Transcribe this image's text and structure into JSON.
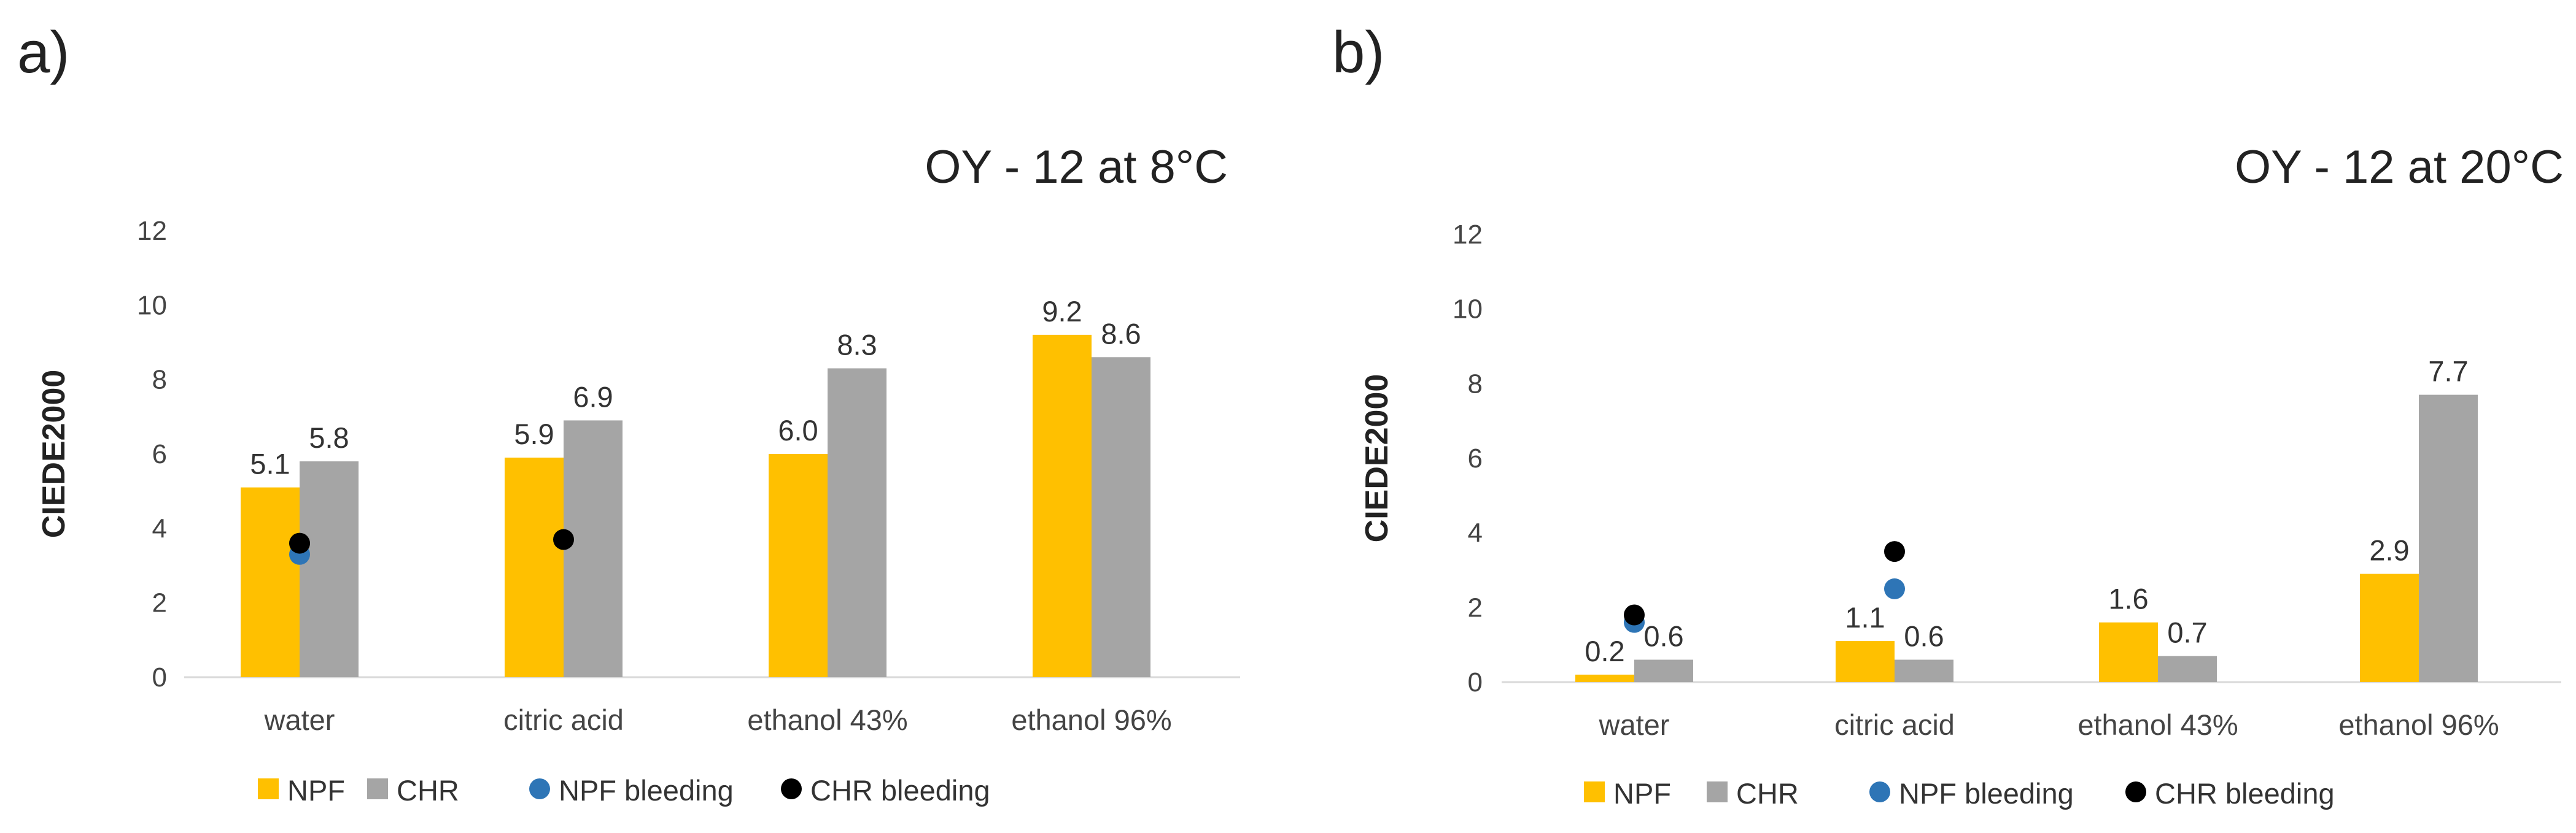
{
  "chart_data": [
    {
      "type": "bar",
      "panel": "a)",
      "title": "OY - 12 at 8°C",
      "ylabel": "CIEDE2000",
      "ylim": [
        0,
        12
      ],
      "yticks": [
        0,
        2,
        4,
        6,
        8,
        10,
        12
      ],
      "categories": [
        "water",
        "citric acid",
        "ethanol 43%",
        "ethanol 96%"
      ],
      "series": [
        {
          "name": "NPF",
          "kind": "bar",
          "color": "#FFC000",
          "values": [
            5.1,
            5.9,
            6.0,
            9.2
          ],
          "labels": [
            "5.1",
            "5.9",
            "6.0",
            "9.2"
          ]
        },
        {
          "name": "CHR",
          "kind": "bar",
          "color": "#A5A5A5",
          "values": [
            5.8,
            6.9,
            8.3,
            8.6
          ],
          "labels": [
            "5.8",
            "6.9",
            "8.3",
            "8.6"
          ]
        },
        {
          "name": "NPF bleeding",
          "kind": "marker",
          "color": "#2E75B6",
          "values": [
            3.3,
            null,
            null,
            null
          ]
        },
        {
          "name": "CHR bleeding",
          "kind": "marker",
          "color": "#000000",
          "values": [
            3.6,
            3.7,
            null,
            null
          ]
        }
      ],
      "grid": false,
      "legend_position": "bottom"
    },
    {
      "type": "bar",
      "panel": "b)",
      "title": "OY - 12 at 20°C",
      "ylabel": "CIEDE2000",
      "ylim": [
        0,
        12
      ],
      "yticks": [
        0,
        2,
        4,
        6,
        8,
        10,
        12
      ],
      "categories": [
        "water",
        "citric acid",
        "ethanol 43%",
        "ethanol 96%"
      ],
      "series": [
        {
          "name": "NPF",
          "kind": "bar",
          "color": "#FFC000",
          "values": [
            0.2,
            1.1,
            1.6,
            2.9
          ],
          "labels": [
            "0.2",
            "1.1",
            "1.6",
            "2.9"
          ]
        },
        {
          "name": "CHR",
          "kind": "bar",
          "color": "#A5A5A5",
          "values": [
            0.6,
            0.6,
            0.7,
            7.7
          ],
          "labels": [
            "0.6",
            "0.6",
            "0.7",
            "7.7"
          ]
        },
        {
          "name": "NPF bleeding",
          "kind": "marker",
          "color": "#2E75B6",
          "values": [
            1.6,
            2.5,
            null,
            null
          ]
        },
        {
          "name": "CHR bleeding",
          "kind": "marker",
          "color": "#000000",
          "values": [
            1.8,
            3.5,
            null,
            null
          ]
        }
      ],
      "grid": false,
      "legend_position": "bottom"
    }
  ]
}
